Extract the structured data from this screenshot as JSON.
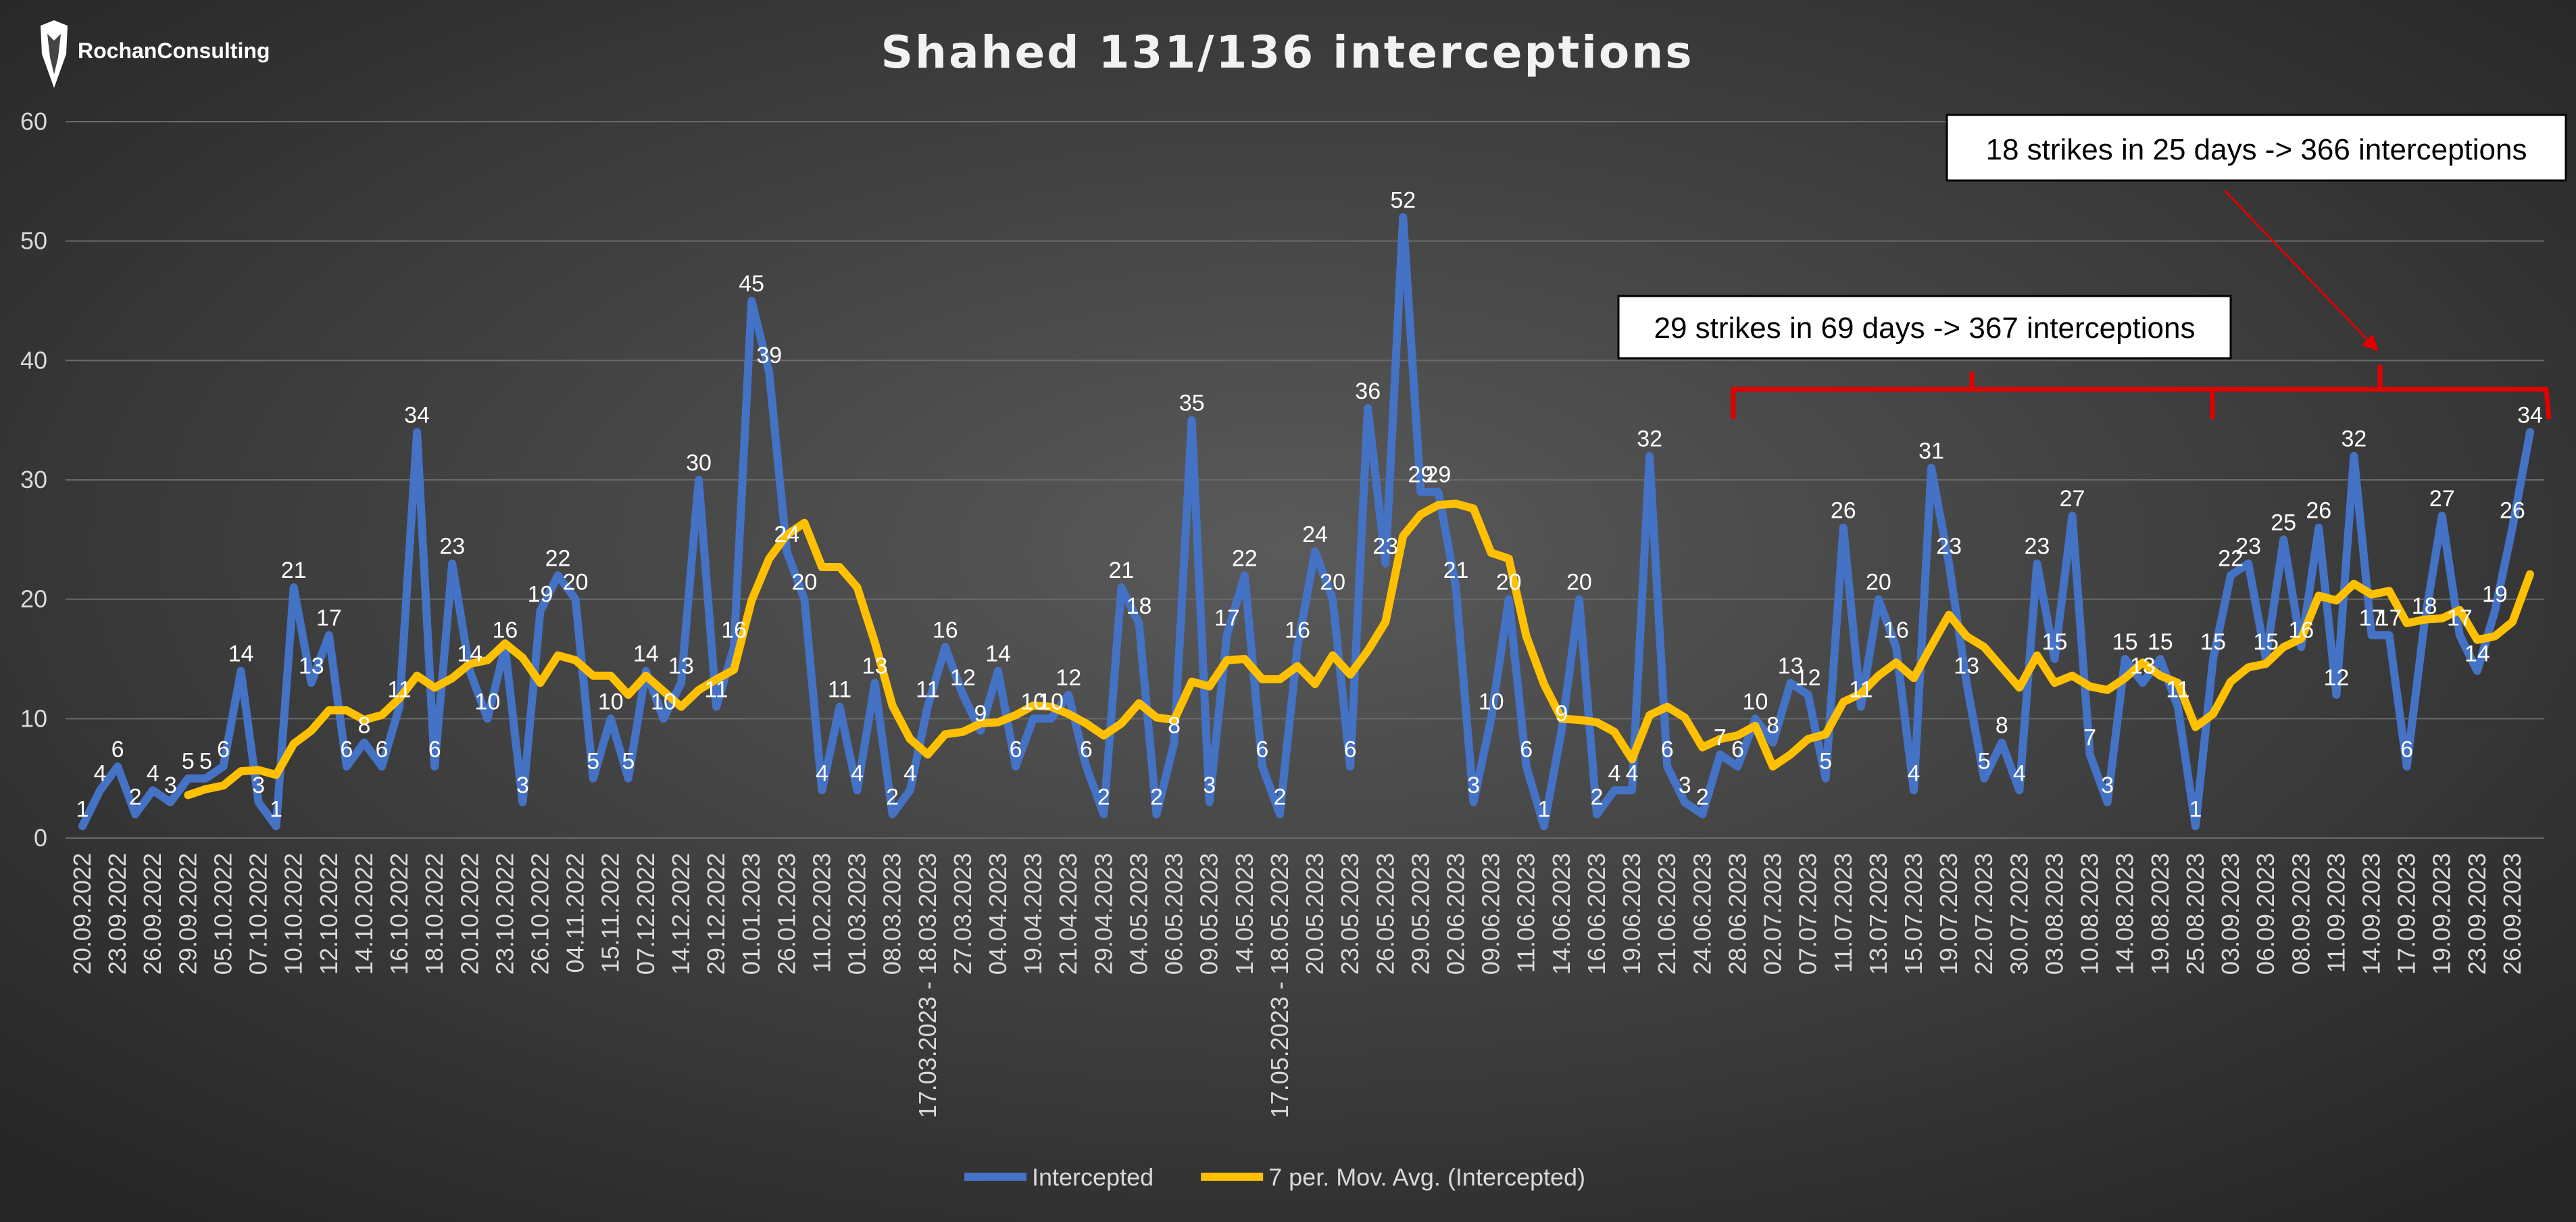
{
  "logo": "RochanConsulting",
  "chart_data": {
    "type": "line",
    "title": "Shahed 131/136 interceptions",
    "categories": [
      "20.09.2022",
      null,
      "23.09.2022",
      null,
      "26.09.2022",
      null,
      "29.09.2022",
      null,
      "05.10.2022",
      null,
      "07.10.2022",
      null,
      "10.10.2022",
      null,
      "12.10.2022",
      null,
      "14.10.2022",
      null,
      "16.10.2022",
      null,
      "18.10.2022",
      null,
      "20.10.2022",
      null,
      "23.10.2022",
      null,
      "26.10.2022",
      null,
      "04.11.2022",
      null,
      "15.11.2022",
      null,
      "07.12.2022",
      null,
      "14.12.2022",
      null,
      "29.12.2022",
      null,
      "01.01.2023",
      null,
      "26.01.2023",
      null,
      "11.02.2023",
      null,
      "01.03.2023",
      null,
      "08.03.2023",
      null,
      "17.03.2023 - 18.03.2023",
      null,
      "27.03.2023",
      null,
      "04.04.2023",
      null,
      "19.04.2023",
      null,
      "21.04.2023",
      null,
      "29.04.2023",
      null,
      "04.05.2023",
      null,
      "06.05.2023",
      null,
      "09.05.2023",
      null,
      "14.05.2023",
      null,
      "17.05.2023 - 18.05.2023",
      null,
      "20.05.2023",
      null,
      "23.05.2023",
      null,
      "26.05.2023",
      null,
      "29.05.2023",
      null,
      "02.06.2023",
      null,
      "09.06.2023",
      null,
      "11.06.2023",
      null,
      "14.06.2023",
      null,
      "16.06.2023",
      null,
      "19.06.2023",
      null,
      "21.06.2023",
      null,
      "24.06.2023",
      null,
      "28.06.2023",
      null,
      "02.07.2023",
      null,
      "07.07.2023",
      null,
      "11.07.2023",
      null,
      "13.07.2023",
      null,
      "15.07.2023",
      null,
      "19.07.2023",
      null,
      "22.07.2023",
      null,
      "30.07.2023",
      null,
      "03.08.2023",
      null,
      "10.08.2023",
      null,
      "14.08.2023",
      null,
      "19.08.2023",
      null,
      "25.08.2023",
      null,
      "03.09.2023",
      null,
      "06.09.2023",
      null,
      "08.09.2023",
      null,
      "11.09.2023",
      null,
      "14.09.2023",
      null,
      "17.09.2023",
      null,
      "19.09.2023",
      null,
      "23.09.2023",
      null,
      "26.09.2023",
      null
    ],
    "series": [
      {
        "name": "Intercepted",
        "color": "#4472c4",
        "labels": true,
        "values": [
          1,
          4,
          6,
          2,
          4,
          3,
          5,
          5,
          6,
          14,
          3,
          1,
          21,
          13,
          17,
          6,
          8,
          6,
          11,
          34,
          6,
          23,
          14,
          10,
          16,
          3,
          19,
          22,
          20,
          5,
          10,
          5,
          14,
          10,
          13,
          30,
          11,
          16,
          45,
          39,
          24,
          20,
          4,
          11,
          4,
          13,
          2,
          4,
          11,
          16,
          12,
          9,
          14,
          6,
          10,
          10,
          12,
          6,
          2,
          21,
          18,
          2,
          8,
          35,
          3,
          17,
          22,
          6,
          2,
          16,
          24,
          20,
          6,
          36,
          23,
          52,
          29,
          29,
          21,
          3,
          10,
          20,
          6,
          1,
          9,
          20,
          2,
          4,
          4,
          32,
          6,
          3,
          2,
          7,
          6,
          10,
          8,
          13,
          12,
          5,
          26,
          11,
          20,
          16,
          4,
          31,
          23,
          13,
          5,
          8,
          4,
          23,
          15,
          27,
          7,
          3,
          15,
          13,
          15,
          11,
          1,
          15,
          22,
          23,
          15,
          25,
          16,
          26,
          12,
          32,
          17,
          17,
          6,
          18,
          27,
          17,
          14,
          19,
          26,
          34
        ]
      },
      {
        "name": "7 per. Mov. Avg. (Intercepted)",
        "color": "#ffc000",
        "labels": false,
        "values": [
          null,
          null,
          null,
          null,
          null,
          null,
          3.6,
          4.1,
          4.4,
          5.6,
          5.7,
          5.3,
          7.9,
          9.0,
          10.7,
          10.7,
          9.9,
          10.3,
          11.7,
          13.6,
          12.6,
          13.4,
          14.6,
          14.9,
          16.3,
          15.1,
          13.0,
          15.3,
          14.9,
          13.6,
          13.6,
          12.0,
          13.6,
          12.3,
          11.0,
          12.4,
          13.3,
          14.1,
          19.9,
          23.4,
          25.4,
          26.4,
          22.7,
          22.7,
          21.0,
          16.4,
          11.1,
          8.3,
          7.0,
          8.7,
          8.9,
          9.6,
          9.7,
          10.3,
          11.1,
          11.0,
          10.4,
          9.6,
          8.6,
          9.6,
          11.3,
          10.1,
          9.9,
          13.1,
          12.7,
          14.9,
          15.0,
          13.3,
          13.3,
          14.4,
          12.9,
          15.3,
          13.7,
          15.7,
          18.1,
          25.3,
          27.1,
          27.9,
          28.0,
          27.6,
          23.9,
          23.4,
          16.9,
          12.9,
          10.0,
          9.9,
          9.7,
          8.9,
          6.6,
          10.3,
          11.0,
          10.1,
          7.6,
          8.3,
          8.6,
          9.4,
          6.0,
          7.0,
          8.3,
          8.7,
          11.4,
          12.1,
          13.6,
          14.7,
          13.4,
          16.1,
          18.7,
          16.9,
          16.0,
          14.3,
          12.6,
          15.3,
          13.0,
          13.6,
          12.7,
          12.4,
          13.4,
          14.7,
          13.6,
          13.0,
          9.3,
          10.4,
          13.1,
          14.3,
          14.6,
          16.0,
          16.7,
          20.3,
          19.9,
          21.3,
          20.4,
          20.7,
          18.0,
          18.3,
          18.4,
          19.1,
          16.6,
          16.9,
          18.1,
          22.1
        ]
      }
    ],
    "ylim": [
      0,
      60
    ],
    "yticks": [
      0,
      10,
      20,
      30,
      40,
      50,
      60
    ],
    "grid": true,
    "legend": "bottom",
    "annotations": [
      "18 strikes in 25 days -> 366 interceptions",
      "29 strikes in 69 days -> 367 interceptions"
    ]
  }
}
